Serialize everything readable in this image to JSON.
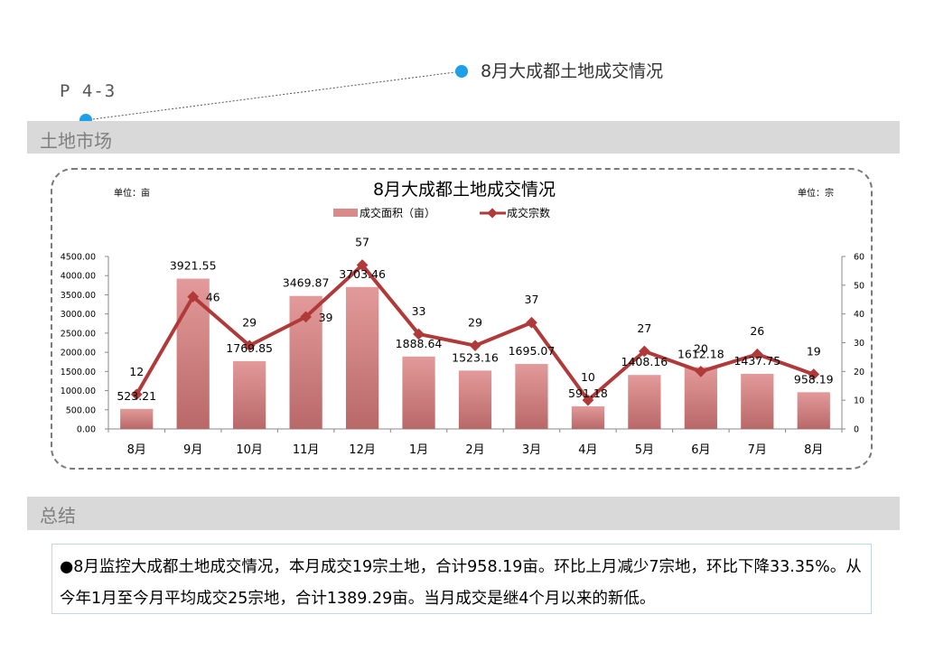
{
  "header": {
    "page_code": "P 4-3",
    "callout_title": "8月大成都土地成交情况"
  },
  "section1": {
    "title": "土地市场"
  },
  "section2": {
    "title": "总结"
  },
  "summary": {
    "text": "●8月监控大成都土地成交情况，本月成交19宗土地，合计958.19亩。环比上月减少7宗地，环比下降33.35%。从今年1月至今月平均成交25宗地，合计1389.29亩。当月成交是继4个月以来的新低。"
  },
  "colors": {
    "accent_dot": "#1ea0e8",
    "bar": "#d98b8b",
    "line": "#b03a3a"
  },
  "chart_data": {
    "type": "bar",
    "title": "8月大成都土地成交情况",
    "unit_left": "单位：亩",
    "unit_right": "单位：宗",
    "categories": [
      "8月",
      "9月",
      "10月",
      "11月",
      "12月",
      "1月",
      "2月",
      "3月",
      "4月",
      "5月",
      "6月",
      "7月",
      "8月"
    ],
    "series": [
      {
        "name": "成交面积（亩）",
        "type": "bar",
        "axis": "left",
        "values": [
          523.21,
          3921.55,
          1769.85,
          3469.87,
          3703.46,
          1888.64,
          1523.16,
          1695.07,
          591.18,
          1408.16,
          1612.18,
          1437.75,
          958.19
        ],
        "labels": [
          "523.21",
          "3921.55",
          "1769.85",
          "3469.87",
          "3703.46",
          "1888.64",
          "1523.16",
          "1695.07",
          "591.18",
          "1408.16",
          "1612.18",
          "1437.75",
          "958.19"
        ]
      },
      {
        "name": "成交宗数",
        "type": "line",
        "axis": "right",
        "values": [
          12,
          46,
          29,
          39,
          57,
          33,
          29,
          37,
          10,
          27,
          20,
          26,
          19
        ],
        "labels": [
          "12",
          "46",
          "29",
          "39",
          "57",
          "33",
          "29",
          "37",
          "10",
          "27",
          "20",
          "26",
          "19"
        ]
      }
    ],
    "y_left": {
      "min": 0,
      "max": 4500,
      "ticks": [
        "0.00",
        "500.00",
        "1000.00",
        "1500.00",
        "2000.00",
        "2500.00",
        "3000.00",
        "3500.00",
        "4000.00",
        "4500.00"
      ]
    },
    "y_right": {
      "min": 0,
      "max": 60,
      "ticks": [
        "0",
        "10",
        "20",
        "30",
        "40",
        "50",
        "60"
      ]
    },
    "legend_position": "top-center",
    "grid": false
  }
}
